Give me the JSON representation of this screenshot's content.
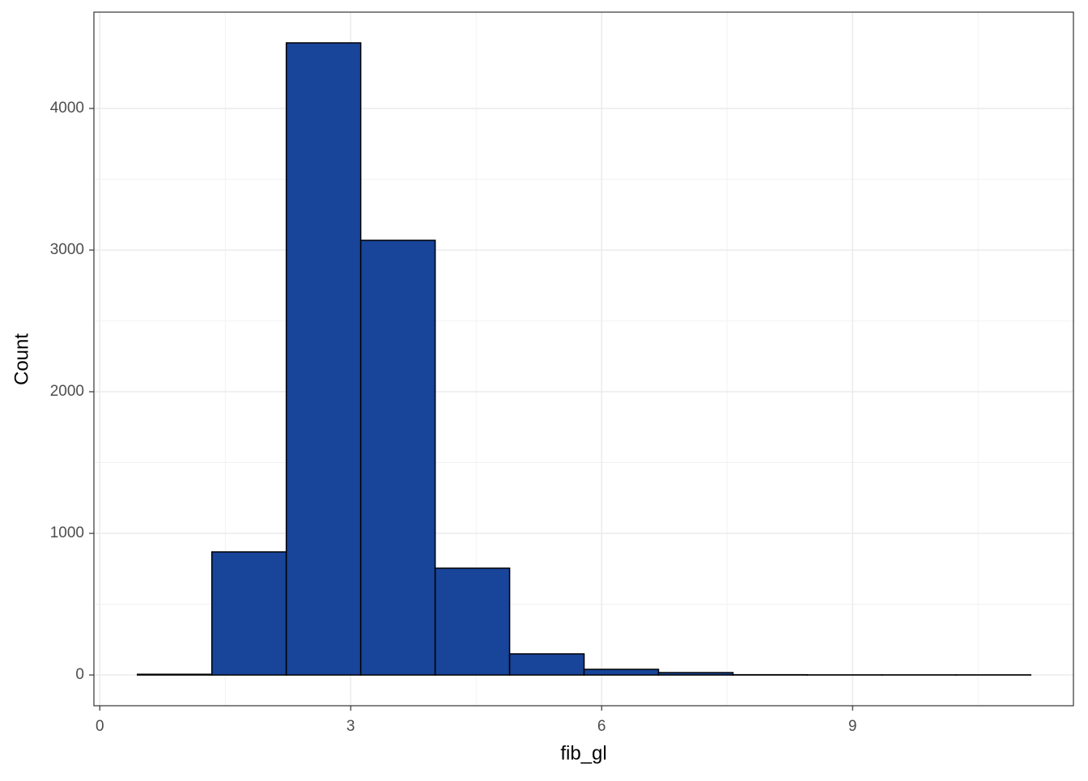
{
  "chart_data": {
    "type": "histogram",
    "x_label": "fib_gl",
    "y_label": "Count",
    "bins": [
      0.45,
      1.34,
      2.23,
      3.12,
      4.01,
      4.9,
      5.79,
      6.68,
      7.57,
      8.46,
      9.35,
      10.24,
      11.13
    ],
    "values": [
      5,
      869,
      4463,
      3069,
      754,
      149,
      40,
      17,
      2,
      1,
      1,
      1
    ],
    "color": "#18449a",
    "edge_color": "#000000",
    "xlim": [
      -0.07,
      11.64
    ],
    "xticks": [
      0,
      3,
      6,
      9
    ],
    "ylim": [
      -217,
      4680
    ],
    "yticks": [
      0,
      1000,
      2000,
      3000,
      4000
    ],
    "grid": true
  }
}
